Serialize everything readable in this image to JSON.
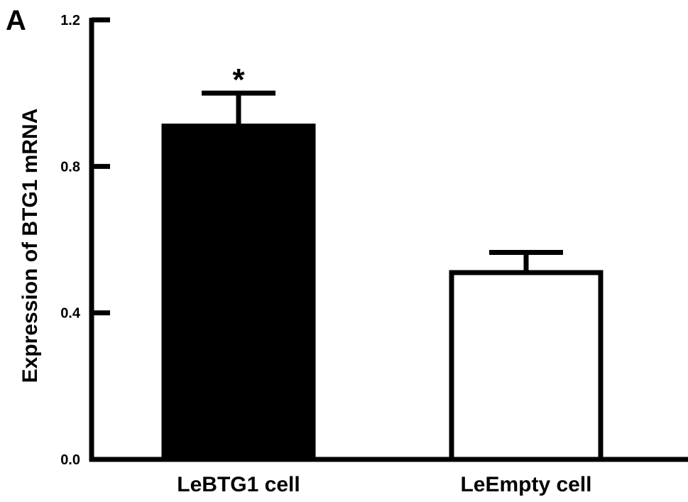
{
  "panel_label": "A",
  "chart_data": {
    "type": "bar",
    "categories": [
      "LeBTG1 cell",
      "LeEmpty cell"
    ],
    "values": [
      0.91,
      0.51
    ],
    "errors": [
      0.09,
      0.055
    ],
    "bar_fills": [
      "#000000",
      "#ffffff"
    ],
    "annotations": [
      "*",
      ""
    ],
    "title": "",
    "xlabel": "",
    "ylabel": "Expression of BTG1 mRNA",
    "ylim": [
      0,
      1.2
    ],
    "yticks": [
      0.0,
      0.4,
      0.8,
      1.2
    ],
    "ytick_labels": [
      "0.0",
      "0.4",
      "0.8",
      "1.2"
    ],
    "grid": false,
    "legend": null
  }
}
